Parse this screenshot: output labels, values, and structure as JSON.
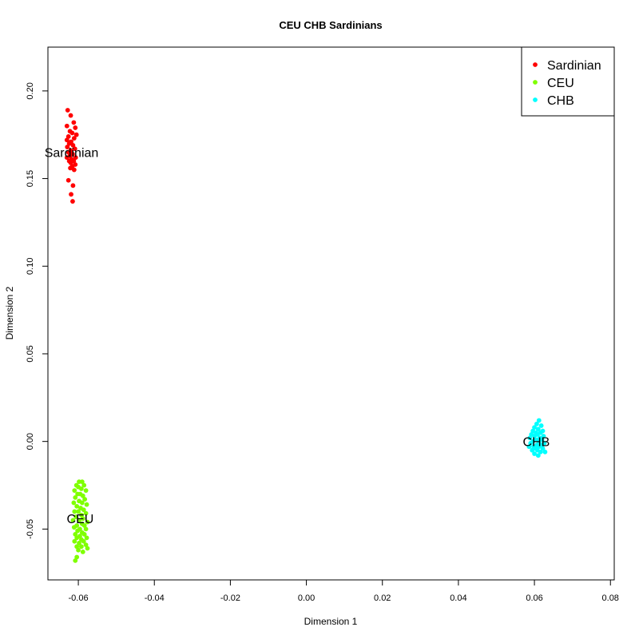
{
  "chart_data": {
    "type": "scatter",
    "title": "CEU CHB Sardinians",
    "xlabel": "Dimension 1",
    "ylabel": "Dimension 2",
    "xlim": [
      -0.068,
      0.081
    ],
    "ylim": [
      -0.079,
      0.225
    ],
    "x_ticks": [
      -0.06,
      -0.04,
      -0.02,
      0.0,
      0.02,
      0.04,
      0.06,
      0.08
    ],
    "x_tick_labels": [
      "-0.06",
      "-0.04",
      "-0.02",
      "0.00",
      "0.02",
      "0.04",
      "0.06",
      "0.08"
    ],
    "y_ticks": [
      -0.05,
      0.0,
      0.05,
      0.1,
      0.15,
      0.2
    ],
    "y_tick_labels": [
      "-0.05",
      "0.00",
      "0.05",
      "0.10",
      "0.15",
      "0.20"
    ],
    "grid": false,
    "legend_position": "top-right",
    "series": [
      {
        "name": "Sardinian",
        "color": "#ff0000",
        "label": "Sardinian",
        "label_at": [
          -0.0618,
          0.165
        ],
        "points": [
          [
            -0.0628,
            0.189
          ],
          [
            -0.062,
            0.186
          ],
          [
            -0.0612,
            0.182
          ],
          [
            -0.063,
            0.18
          ],
          [
            -0.0608,
            0.179
          ],
          [
            -0.0622,
            0.177
          ],
          [
            -0.0616,
            0.176
          ],
          [
            -0.0605,
            0.175
          ],
          [
            -0.0626,
            0.174
          ],
          [
            -0.0611,
            0.173
          ],
          [
            -0.063,
            0.172
          ],
          [
            -0.0619,
            0.171
          ],
          [
            -0.0624,
            0.17
          ],
          [
            -0.0614,
            0.169
          ],
          [
            -0.0629,
            0.168
          ],
          [
            -0.0609,
            0.167
          ],
          [
            -0.062,
            0.166
          ],
          [
            -0.0626,
            0.165
          ],
          [
            -0.0615,
            0.164
          ],
          [
            -0.0622,
            0.163
          ],
          [
            -0.0607,
            0.162
          ],
          [
            -0.063,
            0.162
          ],
          [
            -0.0618,
            0.161
          ],
          [
            -0.0624,
            0.16
          ],
          [
            -0.0612,
            0.16
          ],
          [
            -0.062,
            0.159
          ],
          [
            -0.0608,
            0.158
          ],
          [
            -0.0616,
            0.157
          ],
          [
            -0.0621,
            0.156
          ],
          [
            -0.0611,
            0.155
          ],
          [
            -0.0626,
            0.149
          ],
          [
            -0.0614,
            0.146
          ],
          [
            -0.0619,
            0.141
          ],
          [
            -0.0615,
            0.137
          ]
        ]
      },
      {
        "name": "CEU",
        "color": "#7fff00",
        "label": "CEU",
        "label_at": [
          -0.0595,
          -0.044
        ],
        "points": [
          [
            -0.0598,
            -0.023
          ],
          [
            -0.059,
            -0.023
          ],
          [
            -0.0605,
            -0.025
          ],
          [
            -0.0585,
            -0.025
          ],
          [
            -0.06,
            -0.026
          ],
          [
            -0.0592,
            -0.027
          ],
          [
            -0.061,
            -0.028
          ],
          [
            -0.058,
            -0.028
          ],
          [
            -0.0602,
            -0.03
          ],
          [
            -0.0595,
            -0.03
          ],
          [
            -0.0588,
            -0.031
          ],
          [
            -0.0608,
            -0.032
          ],
          [
            -0.0583,
            -0.033
          ],
          [
            -0.0598,
            -0.034
          ],
          [
            -0.0612,
            -0.035
          ],
          [
            -0.059,
            -0.035
          ],
          [
            -0.0578,
            -0.036
          ],
          [
            -0.0604,
            -0.037
          ],
          [
            -0.0594,
            -0.038
          ],
          [
            -0.0586,
            -0.039
          ],
          [
            -0.061,
            -0.04
          ],
          [
            -0.06,
            -0.04
          ],
          [
            -0.058,
            -0.041
          ],
          [
            -0.0592,
            -0.042
          ],
          [
            -0.0606,
            -0.043
          ],
          [
            -0.0588,
            -0.044
          ],
          [
            -0.0614,
            -0.045
          ],
          [
            -0.0598,
            -0.045
          ],
          [
            -0.0576,
            -0.046
          ],
          [
            -0.059,
            -0.047
          ],
          [
            -0.0604,
            -0.048
          ],
          [
            -0.0584,
            -0.048
          ],
          [
            -0.0611,
            -0.049
          ],
          [
            -0.0596,
            -0.05
          ],
          [
            -0.058,
            -0.05
          ],
          [
            -0.0602,
            -0.051
          ],
          [
            -0.059,
            -0.052
          ],
          [
            -0.0608,
            -0.053
          ],
          [
            -0.0584,
            -0.053
          ],
          [
            -0.0596,
            -0.054
          ],
          [
            -0.0578,
            -0.055
          ],
          [
            -0.0604,
            -0.055
          ],
          [
            -0.0592,
            -0.056
          ],
          [
            -0.061,
            -0.057
          ],
          [
            -0.0586,
            -0.057
          ],
          [
            -0.0598,
            -0.058
          ],
          [
            -0.058,
            -0.059
          ],
          [
            -0.0604,
            -0.06
          ],
          [
            -0.0592,
            -0.06
          ],
          [
            -0.0576,
            -0.061
          ],
          [
            -0.06,
            -0.062
          ],
          [
            -0.0588,
            -0.063
          ],
          [
            -0.0604,
            -0.066
          ],
          [
            -0.0608,
            -0.068
          ]
        ]
      },
      {
        "name": "CHB",
        "color": "#00ffff",
        "label": "CHB",
        "label_at": [
          0.0605,
          0.0
        ],
        "points": [
          [
            0.0612,
            0.012
          ],
          [
            0.0606,
            0.01
          ],
          [
            0.0618,
            0.009
          ],
          [
            0.06,
            0.008
          ],
          [
            0.061,
            0.007
          ],
          [
            0.0622,
            0.006
          ],
          [
            0.0596,
            0.006
          ],
          [
            0.0604,
            0.005
          ],
          [
            0.0616,
            0.005
          ],
          [
            0.0592,
            0.004
          ],
          [
            0.0608,
            0.004
          ],
          [
            0.0624,
            0.003
          ],
          [
            0.06,
            0.003
          ],
          [
            0.0614,
            0.002
          ],
          [
            0.0588,
            0.002
          ],
          [
            0.062,
            0.001
          ],
          [
            0.0604,
            0.001
          ],
          [
            0.0596,
            0.0
          ],
          [
            0.0612,
            0.0
          ],
          [
            0.0626,
            -0.001
          ],
          [
            0.059,
            -0.001
          ],
          [
            0.0606,
            -0.002
          ],
          [
            0.0618,
            -0.002
          ],
          [
            0.0598,
            -0.003
          ],
          [
            0.0612,
            -0.003
          ],
          [
            0.0586,
            -0.003
          ],
          [
            0.0622,
            -0.004
          ],
          [
            0.0602,
            -0.004
          ],
          [
            0.0608,
            -0.005
          ],
          [
            0.0594,
            -0.005
          ],
          [
            0.0616,
            -0.006
          ],
          [
            0.0628,
            -0.006
          ],
          [
            0.06,
            -0.007
          ],
          [
            0.061,
            -0.008
          ]
        ]
      }
    ]
  }
}
